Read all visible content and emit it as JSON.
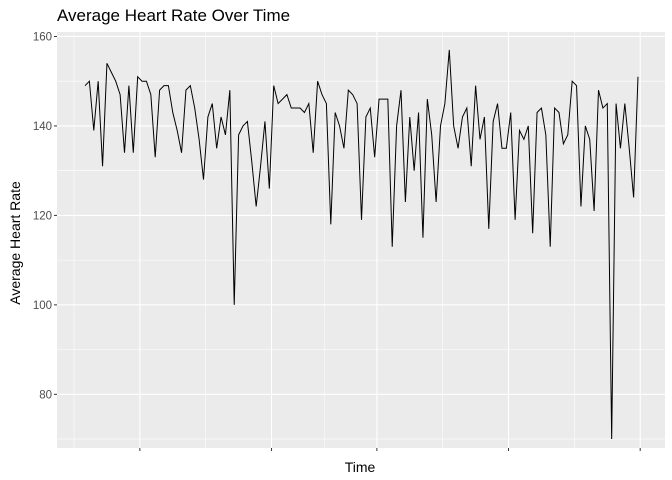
{
  "chart_data": {
    "type": "line",
    "title": "Average Heart Rate Over Time",
    "xlabel": "Time",
    "ylabel": "Average Heart Rate",
    "x_tick_labels_shown": false,
    "ylim": [
      68,
      161
    ],
    "y_ticks": [
      80,
      100,
      120,
      140,
      160
    ],
    "grid": true,
    "legend": "none",
    "colors": {
      "panel": "#ebebeb",
      "grid": "#ffffff",
      "line": "#000000"
    },
    "series": [
      {
        "values": [
          149,
          150,
          139,
          150,
          131,
          154,
          152,
          150,
          147,
          134,
          149,
          134,
          151,
          150,
          150,
          147,
          133,
          148,
          149,
          149,
          143,
          139,
          134,
          148,
          149,
          144,
          137,
          128,
          142,
          145,
          135,
          142,
          138,
          148,
          100,
          138,
          140,
          141,
          132,
          122,
          131,
          141,
          126,
          149,
          145,
          146,
          147,
          144,
          144,
          144,
          143,
          145,
          134,
          150,
          147,
          145,
          118,
          143,
          140,
          135,
          148,
          147,
          145,
          119,
          142,
          144,
          133,
          146,
          146,
          146,
          113,
          140,
          148,
          123,
          142,
          130,
          143,
          115,
          146,
          138,
          123,
          140,
          145,
          157,
          140,
          135,
          142,
          144,
          131,
          149,
          137,
          142,
          117,
          141,
          145,
          135,
          135,
          143,
          119,
          139,
          137,
          140,
          116,
          143,
          144,
          138,
          113,
          144,
          143,
          136,
          138,
          150,
          149,
          122,
          140,
          137,
          121,
          148,
          144,
          145,
          70,
          145,
          135,
          145,
          135,
          124,
          151
        ]
      }
    ]
  }
}
